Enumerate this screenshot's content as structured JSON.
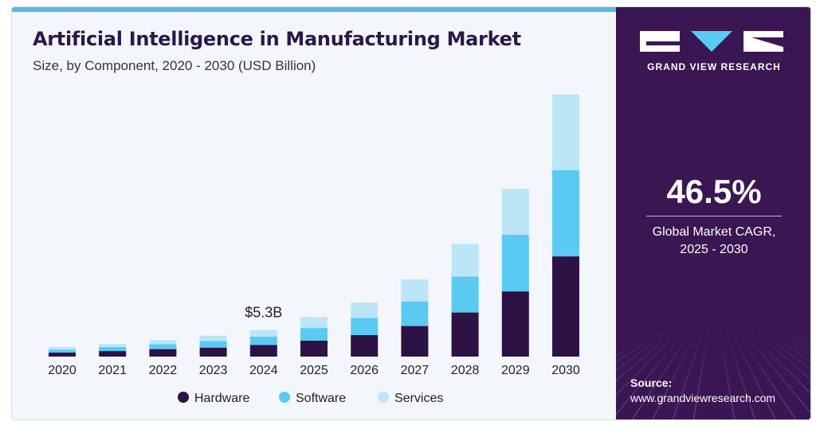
{
  "header": {
    "title": "Artificial Intelligence in Manufacturing Market",
    "subtitle": "Size, by Component, 2020 - 2030 (USD Billion)"
  },
  "chart_data": {
    "type": "bar",
    "stacked": true,
    "categories": [
      "2020",
      "2021",
      "2022",
      "2023",
      "2024",
      "2025",
      "2026",
      "2027",
      "2028",
      "2029",
      "2030"
    ],
    "series": [
      {
        "name": "Hardware",
        "color": "#2d1245",
        "values": [
          0.8,
          1.1,
          1.5,
          1.8,
          2.3,
          3.2,
          4.3,
          6.1,
          8.8,
          13.0,
          20.0
        ]
      },
      {
        "name": "Software",
        "color": "#5bcaf3",
        "values": [
          0.6,
          0.8,
          1.0,
          1.3,
          1.7,
          2.5,
          3.4,
          4.9,
          7.2,
          11.3,
          17.2
        ]
      },
      {
        "name": "Services",
        "color": "#bce6f8",
        "values": [
          0.5,
          0.6,
          0.8,
          1.1,
          1.3,
          2.2,
          3.1,
          4.4,
          6.5,
          9.2,
          15.1
        ]
      }
    ],
    "annotations": [
      {
        "category": "2024",
        "text": "$5.3B"
      }
    ],
    "ylim": [
      0,
      54
    ],
    "grid": false,
    "legend_position": "bottom"
  },
  "sidebar": {
    "brand_name": "GRAND VIEW RESEARCH",
    "cagr_value": "46.5%",
    "cagr_label_line1": "Global Market CAGR,",
    "cagr_label_line2": "2025 - 2030",
    "source_label": "Source:",
    "source_url": "www.grandviewresearch.com"
  }
}
